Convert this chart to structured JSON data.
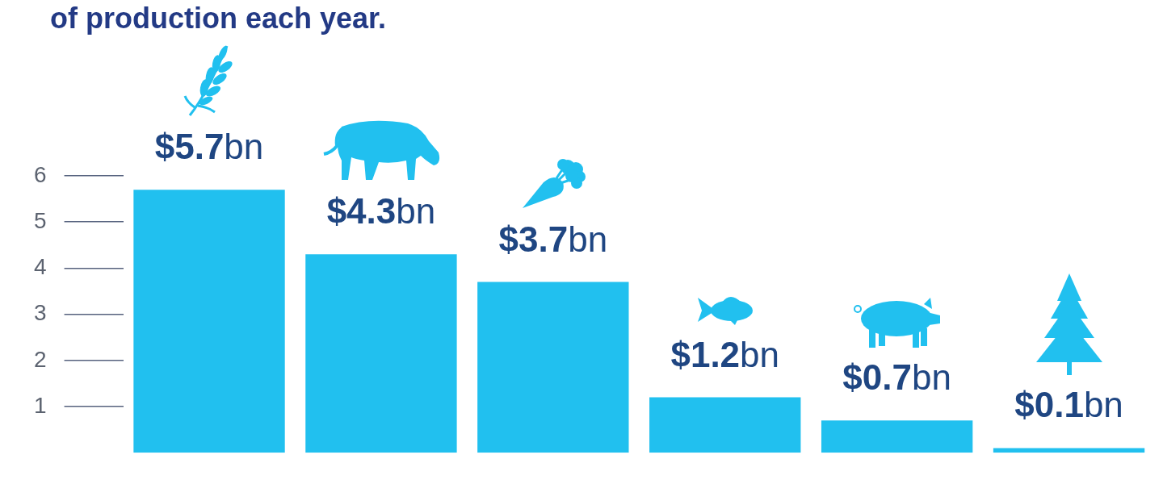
{
  "chart_data": {
    "type": "bar",
    "title": "of production each year.",
    "categories": [
      null,
      null,
      null,
      null,
      null,
      null
    ],
    "values": [
      5.7,
      4.3,
      3.7,
      1.2,
      0.7,
      0.1
    ],
    "color": "#21c0ef",
    "value_labels": [
      "$5.7bn",
      "$4.3bn",
      "$3.7bn",
      "$1.2bn",
      "$0.7bn",
      "$0.1bn"
    ],
    "ylim": [
      0,
      6
    ],
    "yticks": [
      1,
      2,
      3,
      4,
      5,
      6
    ],
    "tick_labels": "y"
  }
}
